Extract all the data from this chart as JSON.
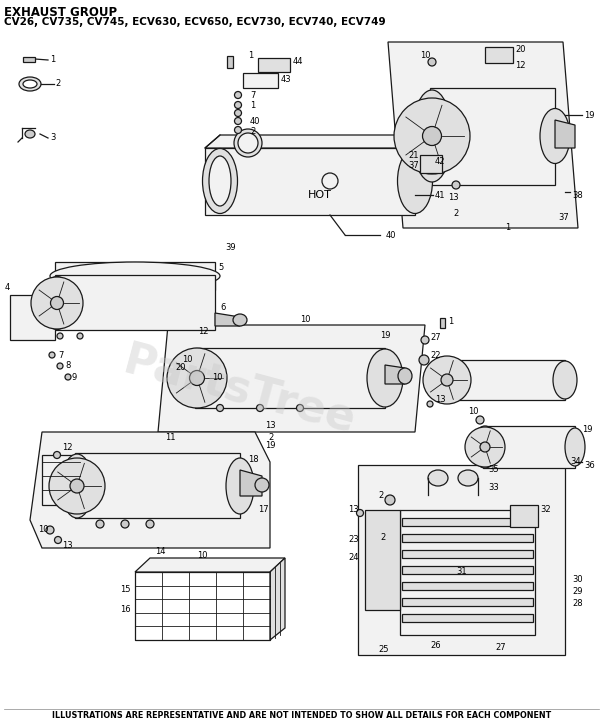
{
  "title_line1": "EXHAUST GROUP",
  "title_line2": "CV26, CV735, CV745, ECV630, ECV650, ECV730, ECV740, ECV749",
  "footer": "ILLUSTRATIONS ARE REPRESENTATIVE AND ARE NOT INTENDED TO SHOW ALL DETAILS FOR EACH COMPONENT",
  "bg_color": "#ffffff",
  "title_fontsize": 8.5,
  "subtitle_fontsize": 7.5,
  "footer_fontsize": 5.8,
  "watermark_text": "PartsTree",
  "watermark_color": "#c8c8c8",
  "watermark_alpha": 0.4,
  "fig_width": 6.03,
  "fig_height": 7.24,
  "dpi": 100,
  "lw_main": 0.9,
  "lw_thin": 0.6,
  "ec": "#1a1a1a",
  "fc_white": "#ffffff",
  "fc_light": "#f2f2f2",
  "fc_mid": "#e0e0e0",
  "fc_dark": "#cccccc",
  "label_fs": 6.0
}
